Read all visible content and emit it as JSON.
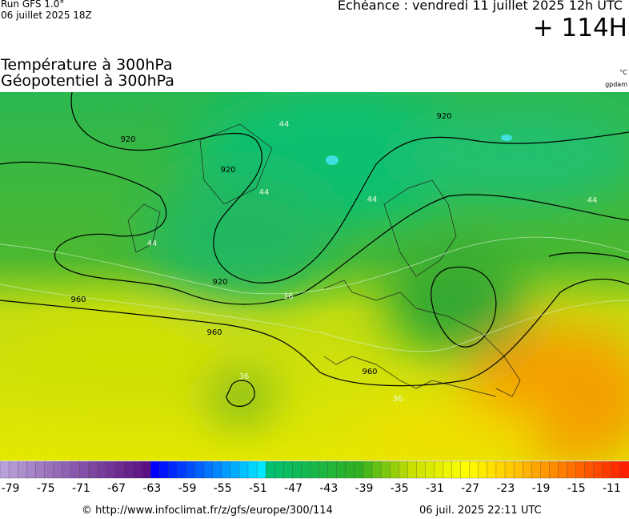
{
  "header": {
    "run": "Run GFS 1.0°",
    "run_date": "06 juillet 2025 18Z",
    "valid": "Echéance : vendredi 11 juillet 2025 12h UTC",
    "lead": "+ 114H",
    "title_line1": "Température à 300hPa",
    "title_line2": "Géopotentiel à 300hPa",
    "unit_temp": "°C",
    "unit_geo": "gpdam"
  },
  "map": {
    "contour_labels": [
      "920",
      "920",
      "920",
      "920",
      "960",
      "960",
      "960"
    ],
    "temp_labels": [
      "44",
      "44",
      "44",
      "44",
      "44",
      "36",
      "36",
      "36"
    ]
  },
  "colorbar": {
    "ticks": [
      -79,
      -75,
      -71,
      -67,
      -63,
      -59,
      -55,
      -51,
      -47,
      -43,
      -39,
      -35,
      -31,
      -27,
      -23,
      -19,
      -15,
      -11
    ]
  },
  "footer": {
    "url": "© http://www.infoclimat.fr/z/gfs/europe/300/114",
    "generated": "06 juil. 2025 22:11 UTC"
  }
}
